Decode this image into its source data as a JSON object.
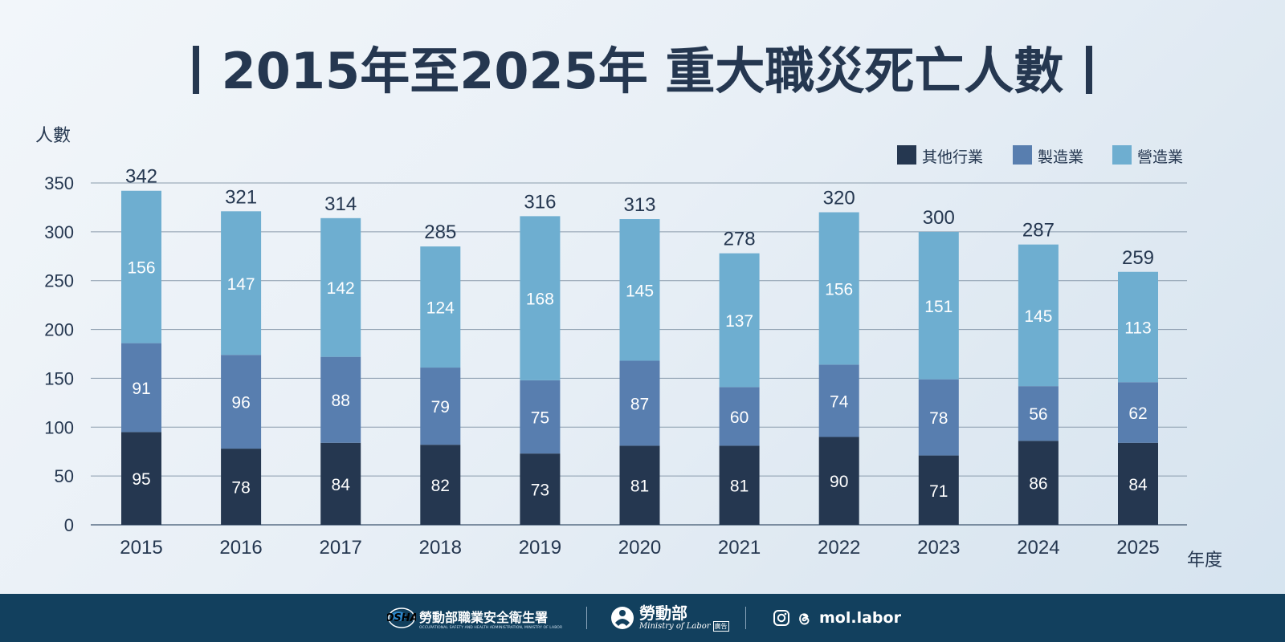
{
  "title": "2015年至2025年 重大職災死亡人數",
  "chart_data": {
    "type": "bar",
    "stacked": true,
    "ylabel": "人數",
    "xlabel": "年度",
    "ylim": [
      0,
      350
    ],
    "yticks": [
      0,
      50,
      100,
      150,
      200,
      250,
      300,
      350
    ],
    "grid": true,
    "legend_position": "top-right",
    "categories": [
      "2015",
      "2016",
      "2017",
      "2018",
      "2019",
      "2020",
      "2021",
      "2022",
      "2023",
      "2024",
      "2025"
    ],
    "series": [
      {
        "name": "其他行業",
        "color": "#253750",
        "values": [
          95,
          78,
          84,
          82,
          73,
          81,
          81,
          90,
          71,
          86,
          84
        ]
      },
      {
        "name": "製造業",
        "color": "#587eaf",
        "values": [
          91,
          96,
          88,
          79,
          75,
          87,
          60,
          74,
          78,
          56,
          62
        ]
      },
      {
        "name": "營造業",
        "color": "#6eaed0",
        "values": [
          156,
          147,
          142,
          124,
          168,
          145,
          137,
          156,
          151,
          145,
          113
        ]
      }
    ],
    "totals": [
      342,
      321,
      314,
      285,
      316,
      313,
      278,
      320,
      300,
      287,
      259
    ]
  },
  "footer": {
    "osha_logo": "OSHA",
    "agency_name": "勞動部職業安全衛生署",
    "agency_subtitle": "OCCUPATIONAL SAFETY AND HEALTH ADMINISTRATION, MINISTRY OF LABOR",
    "ministry_name": "勞動部",
    "ministry_subtitle": "Ministry of Labor",
    "ad_tag": "廣告",
    "social_handle": "mol.labor",
    "social_icons": [
      "instagram-icon",
      "threads-icon"
    ]
  }
}
